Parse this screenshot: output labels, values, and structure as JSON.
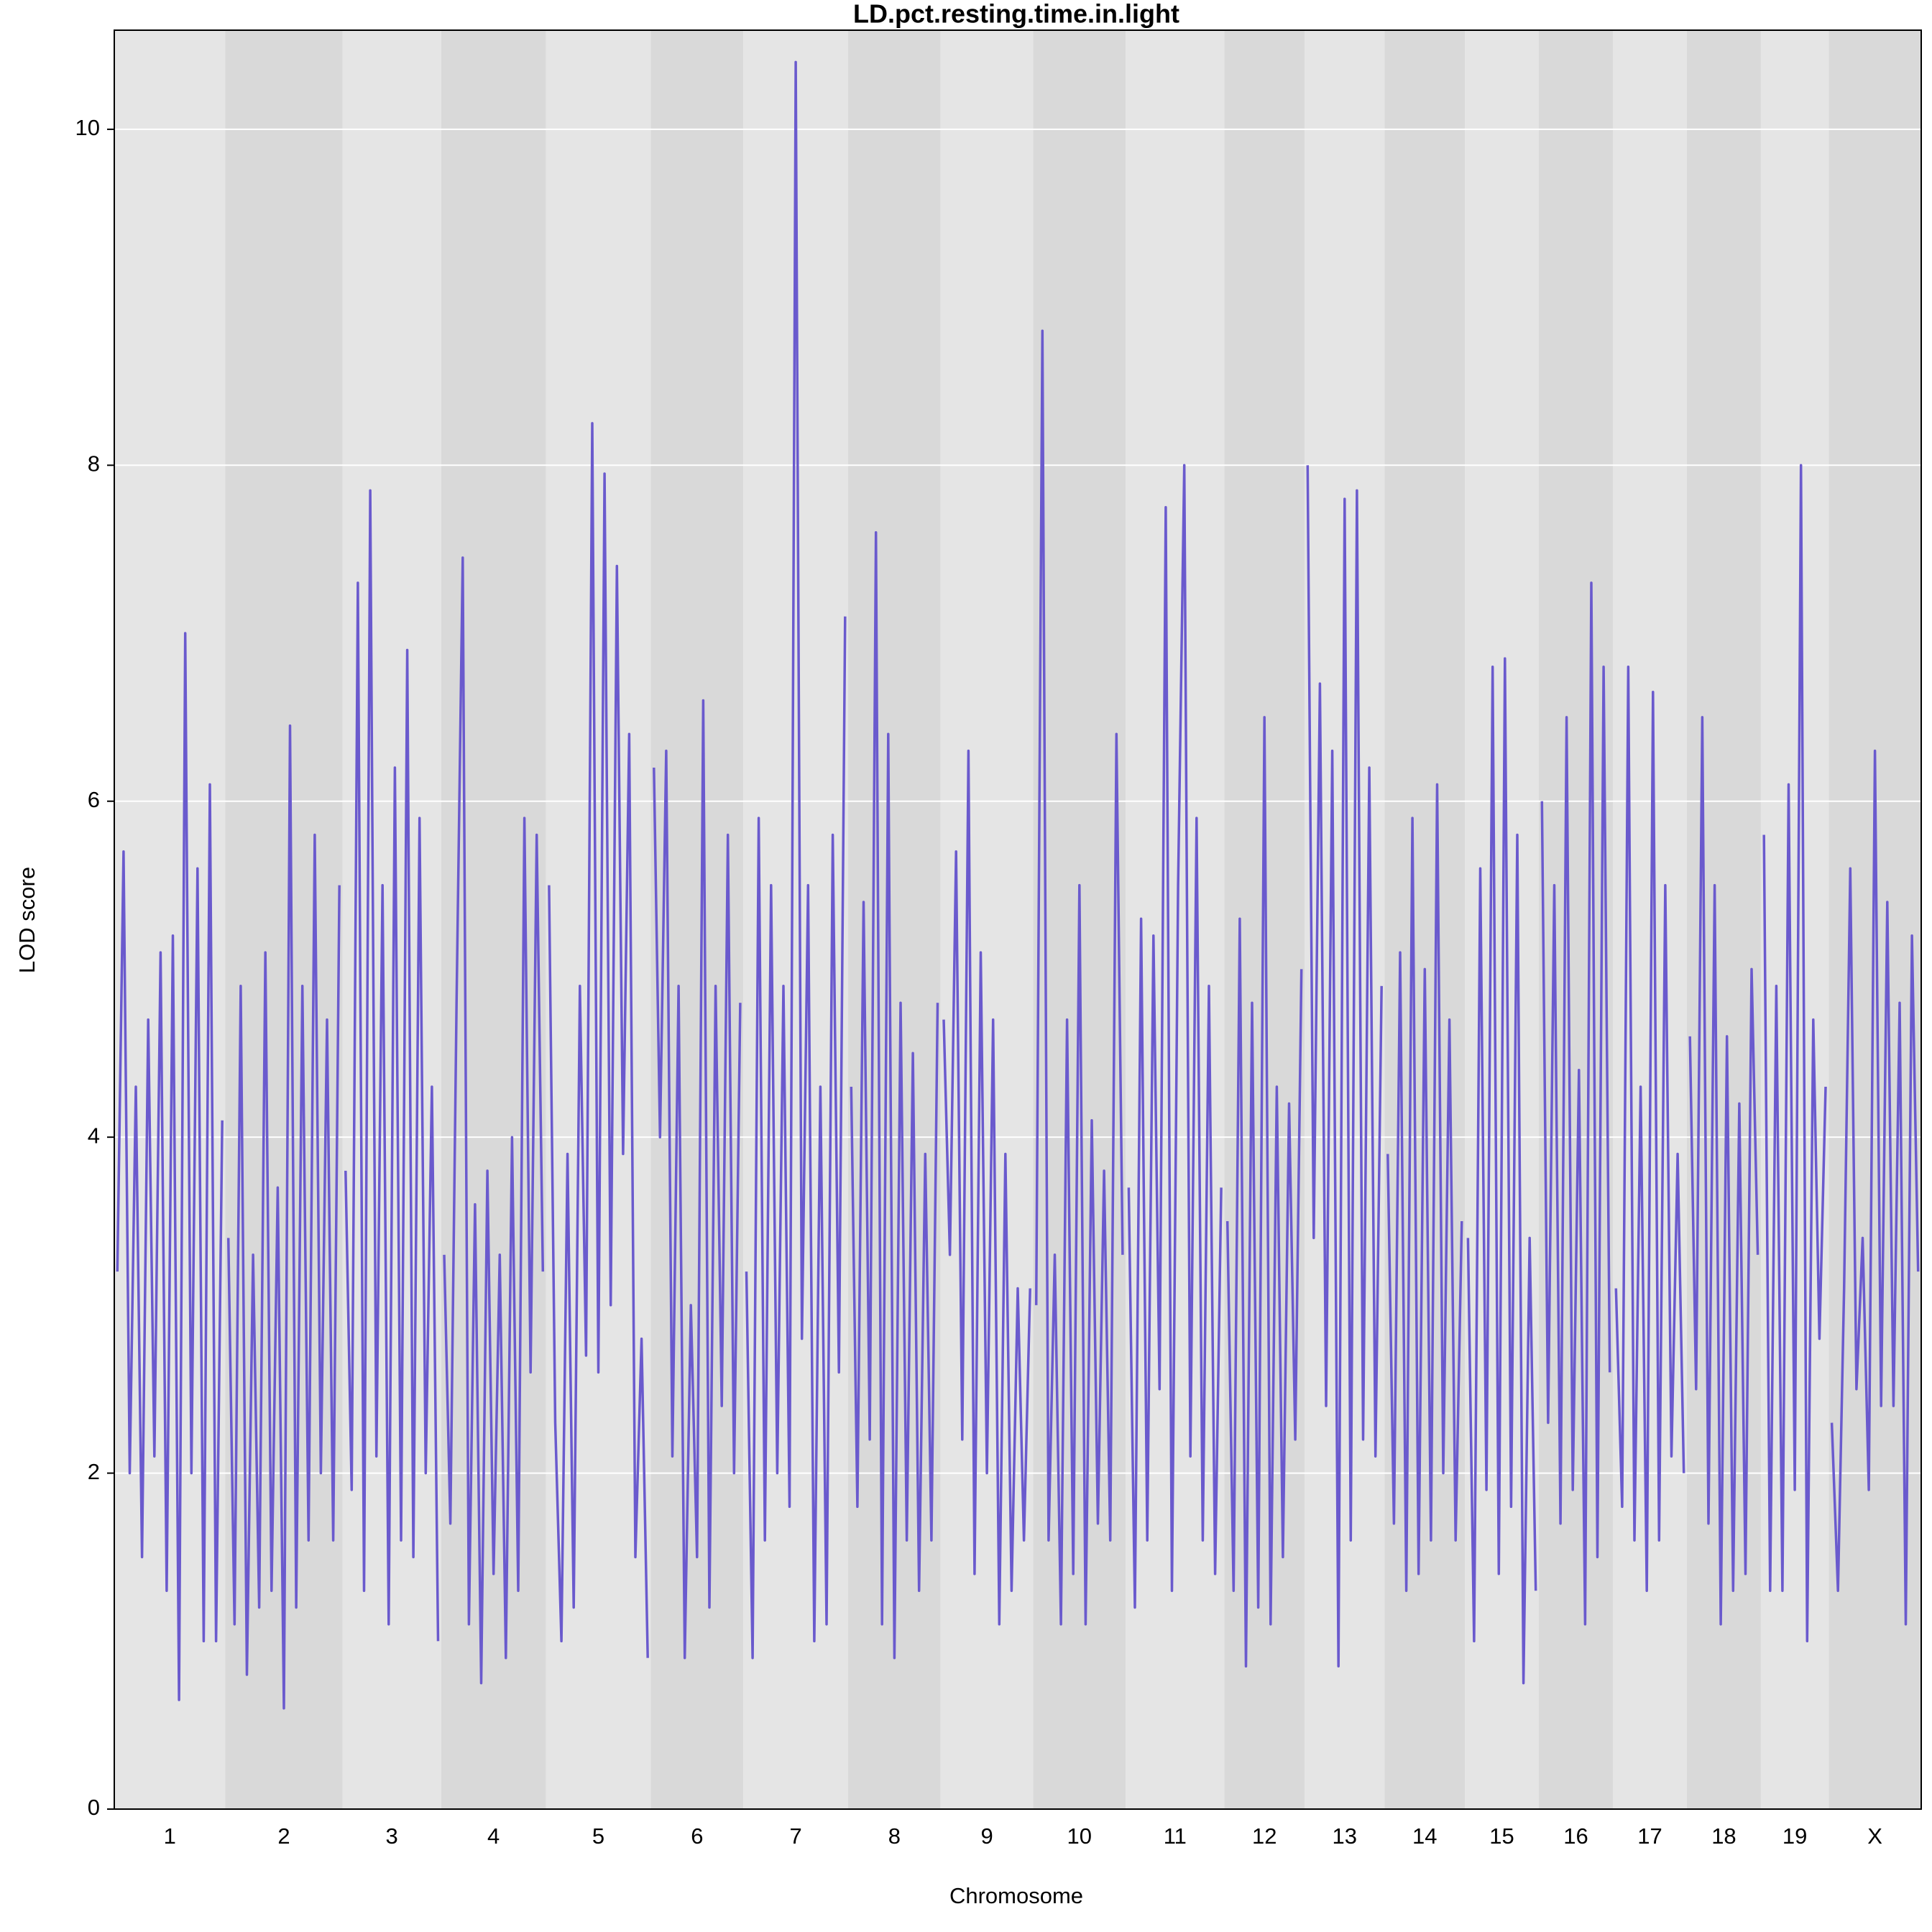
{
  "chart_data": {
    "type": "line",
    "title": "LD.pct.resting.time.in.light",
    "xlabel": "Chromosome",
    "ylabel": "LOD score",
    "color": "#6a5acd",
    "grid": true,
    "ylim": [
      0,
      10.59
    ],
    "yticks": [
      0,
      2,
      4,
      6,
      8,
      10
    ],
    "categories": [
      "1",
      "2",
      "3",
      "4",
      "5",
      "6",
      "7",
      "8",
      "9",
      "10",
      "11",
      "12",
      "13",
      "14",
      "15",
      "16",
      "17",
      "18",
      "19",
      "X"
    ],
    "values": [
      [
        3.2,
        5.7,
        2.0,
        4.3,
        1.5,
        4.7,
        2.1,
        5.1,
        1.3,
        5.2,
        0.65,
        7.0,
        2.0,
        5.6,
        1.0,
        6.1,
        1.0,
        4.1
      ],
      [
        3.4,
        1.1,
        4.9,
        0.8,
        3.3,
        1.2,
        5.1,
        1.3,
        3.7,
        0.6,
        6.45,
        1.2,
        4.9,
        1.6,
        5.8,
        2.0,
        4.7,
        1.6,
        5.5
      ],
      [
        3.8,
        1.9,
        7.3,
        1.3,
        7.85,
        2.1,
        5.5,
        1.1,
        6.2,
        1.6,
        6.9,
        1.5,
        5.9,
        2.0,
        4.3,
        1.0
      ],
      [
        3.3,
        1.7,
        4.8,
        7.45,
        1.1,
        3.6,
        0.75,
        3.8,
        1.4,
        3.3,
        0.9,
        4.0,
        1.3,
        5.9,
        2.6,
        5.8,
        3.2
      ],
      [
        5.5,
        2.3,
        1.0,
        3.9,
        1.2,
        4.9,
        2.7,
        8.25,
        2.6,
        7.95,
        3.0,
        7.4,
        3.9,
        6.4,
        1.5,
        2.8,
        0.9
      ],
      [
        6.2,
        4.0,
        6.3,
        2.1,
        4.9,
        0.9,
        3.0,
        1.5,
        6.6,
        1.2,
        4.9,
        2.4,
        5.8,
        2.0,
        4.8
      ],
      [
        3.2,
        0.9,
        5.9,
        1.6,
        5.5,
        2.0,
        4.9,
        1.8,
        10.4,
        2.8,
        5.5,
        1.0,
        4.3,
        1.1,
        5.8,
        2.6,
        7.1
      ],
      [
        4.3,
        1.8,
        5.4,
        2.2,
        7.6,
        1.1,
        6.4,
        0.9,
        4.8,
        1.6,
        4.5,
        1.3,
        3.9,
        1.6,
        4.8
      ],
      [
        4.7,
        3.3,
        5.7,
        2.2,
        6.3,
        1.4,
        5.1,
        2.0,
        4.7,
        1.1,
        3.9,
        1.3,
        3.1,
        1.6,
        3.1
      ],
      [
        3.0,
        8.8,
        1.6,
        3.3,
        1.1,
        4.7,
        1.4,
        5.5,
        1.1,
        4.1,
        1.7,
        3.8,
        1.6,
        6.4,
        3.3
      ],
      [
        3.7,
        1.2,
        5.3,
        1.6,
        5.2,
        2.5,
        7.75,
        1.3,
        5.5,
        8.0,
        2.1,
        5.9,
        1.6,
        4.9,
        1.4,
        3.7
      ],
      [
        3.5,
        1.3,
        5.3,
        0.85,
        4.8,
        1.2,
        6.5,
        1.1,
        4.3,
        1.5,
        4.2,
        2.2,
        5.0
      ],
      [
        8.0,
        3.4,
        6.7,
        2.4,
        6.3,
        0.85,
        7.8,
        1.6,
        7.85,
        2.2,
        6.2,
        2.1,
        4.9
      ],
      [
        3.9,
        1.7,
        5.1,
        1.3,
        5.9,
        1.4,
        5.0,
        1.6,
        6.1,
        2.0,
        4.7,
        1.6,
        3.5
      ],
      [
        3.4,
        1.0,
        5.6,
        1.9,
        6.8,
        1.4,
        6.85,
        1.8,
        5.8,
        0.75,
        3.4,
        1.3
      ],
      [
        6.0,
        2.3,
        5.5,
        1.7,
        6.5,
        1.9,
        4.4,
        1.1,
        7.3,
        1.5,
        6.8,
        2.6
      ],
      [
        3.1,
        1.8,
        6.8,
        1.6,
        4.3,
        1.3,
        6.65,
        1.6,
        5.5,
        2.1,
        3.9,
        2.0
      ],
      [
        4.6,
        2.5,
        6.5,
        1.7,
        5.5,
        1.1,
        4.6,
        1.3,
        4.2,
        1.4,
        5.0,
        3.3
      ],
      [
        5.8,
        1.3,
        4.9,
        1.3,
        6.1,
        1.9,
        8.0,
        1.0,
        4.7,
        2.8,
        4.3
      ],
      [
        2.3,
        1.3,
        3.1,
        5.6,
        2.5,
        3.4,
        1.9,
        6.3,
        2.4,
        5.4,
        2.4,
        4.8,
        1.1,
        5.2,
        3.2
      ]
    ]
  }
}
